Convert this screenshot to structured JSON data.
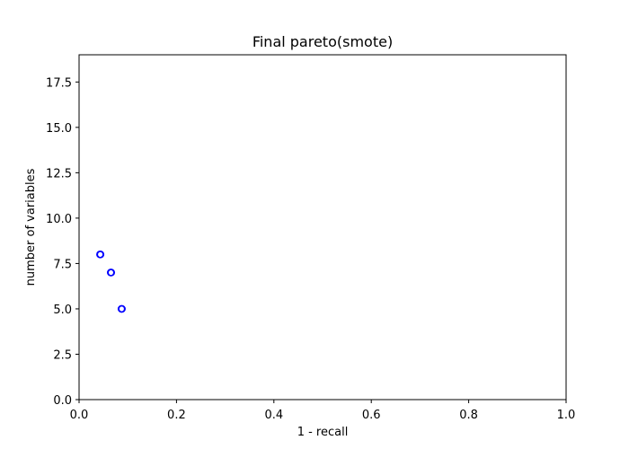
{
  "chart_data": {
    "type": "scatter",
    "title": "Final pareto(smote)",
    "xlabel": "1 - recall",
    "ylabel": "number of variables",
    "xlim": [
      0.0,
      1.0
    ],
    "ylim": [
      0.0,
      19.0
    ],
    "xticks": [
      "0.0",
      "0.2",
      "0.4",
      "0.6",
      "0.8",
      "1.0"
    ],
    "xtick_values": [
      0.0,
      0.2,
      0.4,
      0.6,
      0.8,
      1.0
    ],
    "yticks": [
      "0.0",
      "2.5",
      "5.0",
      "7.5",
      "10.0",
      "12.5",
      "15.0",
      "17.5"
    ],
    "ytick_values": [
      0.0,
      2.5,
      5.0,
      7.5,
      10.0,
      12.5,
      15.0,
      17.5
    ],
    "grid": false,
    "marker": "hollow-circle",
    "marker_color": "#0000ff",
    "points": [
      {
        "x": 0.043,
        "y": 8
      },
      {
        "x": 0.044,
        "y": 8
      },
      {
        "x": 0.065,
        "y": 7
      },
      {
        "x": 0.066,
        "y": 7
      },
      {
        "x": 0.087,
        "y": 5
      },
      {
        "x": 0.088,
        "y": 5
      }
    ]
  }
}
